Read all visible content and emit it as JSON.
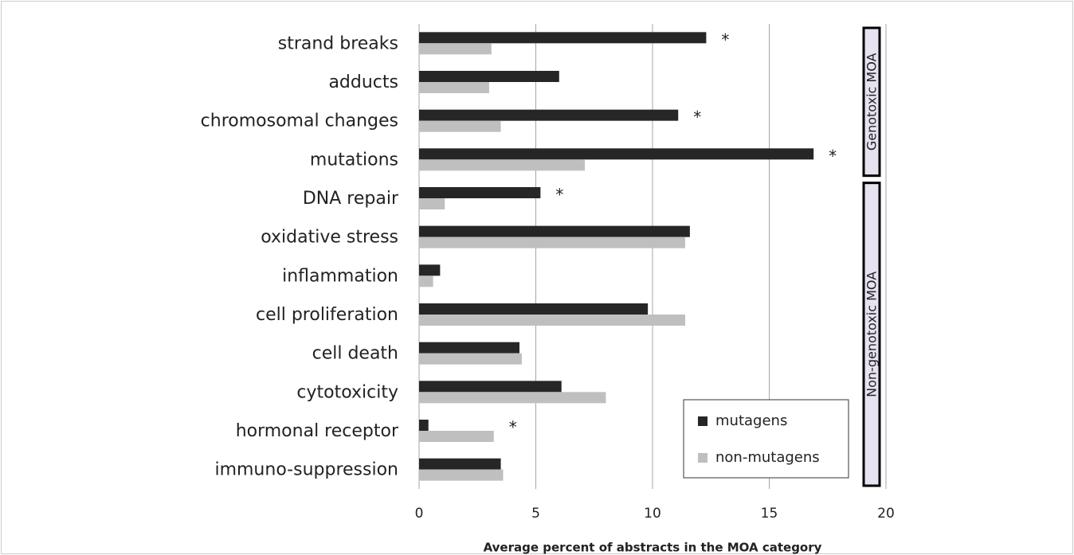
{
  "chart_data": {
    "type": "barh",
    "xlabel": "Average percent of abstracts in the MOA  category",
    "categories": [
      "strand breaks",
      "adducts",
      "chromosomal changes",
      "mutations",
      "DNA repair",
      "oxidative stress",
      "inflammation",
      "cell proliferation",
      "cell death",
      "cytotoxicity",
      "hormonal receptor",
      "immuno-suppression"
    ],
    "series": [
      {
        "name": "mutagens",
        "color": "#262626",
        "values": [
          12.3,
          6.0,
          11.1,
          16.9,
          5.2,
          11.6,
          0.9,
          9.8,
          4.3,
          6.1,
          0.4,
          3.5
        ]
      },
      {
        "name": "non-mutagens",
        "color": "#bfbfbf",
        "values": [
          3.1,
          3.0,
          3.5,
          7.1,
          1.1,
          11.4,
          0.6,
          11.4,
          4.4,
          8.0,
          3.2,
          3.6
        ]
      }
    ],
    "xlim": [
      0,
      20
    ],
    "xticks": [
      0,
      5,
      10,
      15,
      20
    ],
    "grid": true,
    "legend": "lower right",
    "annotations": [
      {
        "text": "*",
        "category": "strand breaks"
      },
      {
        "text": "*",
        "category": "chromosomal changes"
      },
      {
        "text": "*",
        "category": "mutations"
      },
      {
        "text": "*",
        "category": "DNA repair"
      },
      {
        "text": "*",
        "category": "hormonal receptor"
      }
    ],
    "groups": [
      {
        "label": "Genotoxic MOA",
        "from": "strand breaks",
        "to": "mutations"
      },
      {
        "label": "Non-genotoxic MOA",
        "from": "DNA repair",
        "to": "immuno-suppression"
      }
    ]
  }
}
